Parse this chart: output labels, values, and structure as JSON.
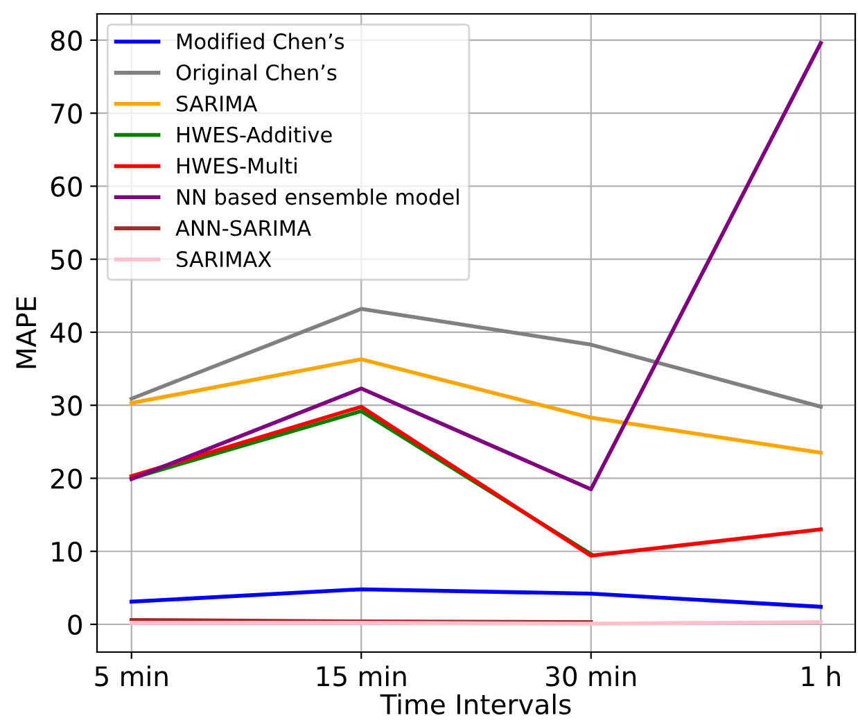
{
  "chart_data": {
    "type": "line",
    "xlabel": "Time Intervals",
    "ylabel": "MAPE",
    "categories": [
      "5 min",
      "15 min",
      "30 min",
      "1 h"
    ],
    "series": [
      {
        "name": "Modified Chen’s",
        "color": "#0000ff",
        "values": [
          3.1,
          4.8,
          4.2,
          2.4
        ]
      },
      {
        "name": "Original Chen’s",
        "color": "#808080",
        "values": [
          30.9,
          43.2,
          38.3,
          29.8
        ]
      },
      {
        "name": "SARIMA",
        "color": "#ffa500",
        "values": [
          30.3,
          36.3,
          28.3,
          23.5
        ]
      },
      {
        "name": "HWES-Additive",
        "color": "#008000",
        "values": [
          20.0,
          29.2,
          9.6,
          null
        ]
      },
      {
        "name": "HWES-Multi",
        "color": "#ff0000",
        "values": [
          20.3,
          29.8,
          9.4,
          13.0
        ]
      },
      {
        "name": "NN based ensemble model",
        "color": "#800080",
        "values": [
          19.9,
          32.3,
          18.5,
          79.6
        ]
      },
      {
        "name": "ANN-SARIMA",
        "color": "#a52a2a",
        "values": [
          0.6,
          0.4,
          0.3,
          null
        ]
      },
      {
        "name": "SARIMAX",
        "color": "#ffc0cb",
        "values": [
          0.2,
          0.2,
          0.1,
          0.3
        ]
      }
    ],
    "ylim": [
      -3.8,
      83.6
    ],
    "yticks": [
      0,
      10,
      20,
      30,
      40,
      50,
      60,
      70,
      80
    ],
    "grid": true,
    "legend": "top left",
    "marker": "none",
    "line_style": "solid"
  }
}
